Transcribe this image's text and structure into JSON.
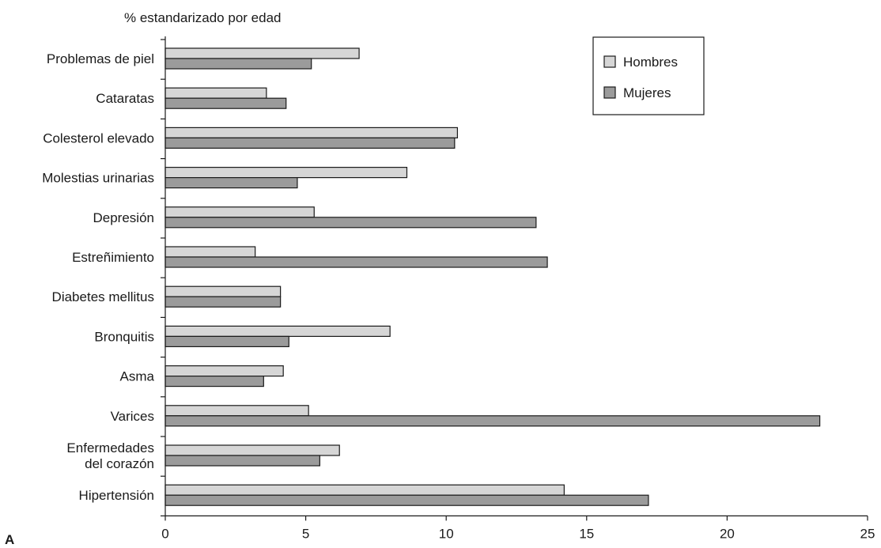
{
  "panel_letter": "A",
  "chart_data": {
    "type": "bar",
    "orientation": "horizontal",
    "title": "% estandarizado por edad",
    "xlabel": "",
    "ylabel": "",
    "xlim": [
      0,
      25
    ],
    "x_ticks": [
      0,
      5,
      10,
      15,
      20,
      25
    ],
    "grid": false,
    "legend_position": "top-right",
    "categories": [
      "Problemas de piel",
      "Cataratas",
      "Colesterol elevado",
      "Molestias urinarias",
      "Depresión",
      "Estreñimiento",
      "Diabetes mellitus",
      "Bronquitis",
      "Asma",
      "Varices",
      "Enfermedades del corazón",
      "Hipertensión"
    ],
    "category_label_lines": [
      [
        "Problemas de piel"
      ],
      [
        "Cataratas"
      ],
      [
        "Colesterol elevado"
      ],
      [
        "Molestias urinarias"
      ],
      [
        "Depresión"
      ],
      [
        "Estreñimiento"
      ],
      [
        "Diabetes mellitus"
      ],
      [
        "Bronquitis"
      ],
      [
        "Asma"
      ],
      [
        "Varices"
      ],
      [
        "Enfermedades",
        "del corazón"
      ],
      [
        "Hipertensión"
      ]
    ],
    "series": [
      {
        "name": "Hombres",
        "color": "#d6d6d6",
        "values": [
          6.9,
          3.6,
          10.4,
          8.6,
          5.3,
          3.2,
          4.1,
          8.0,
          4.2,
          5.1,
          6.2,
          14.2
        ]
      },
      {
        "name": "Mujeres",
        "color": "#9b9b9b",
        "values": [
          5.2,
          4.3,
          10.3,
          4.7,
          13.2,
          13.6,
          4.1,
          4.4,
          3.5,
          23.3,
          5.5,
          17.2
        ]
      }
    ]
  }
}
